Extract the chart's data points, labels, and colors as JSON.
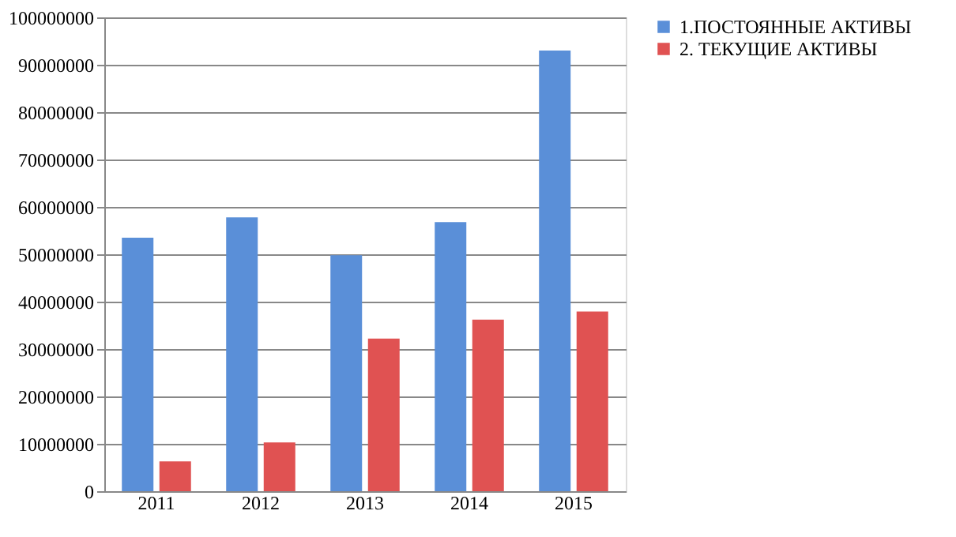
{
  "chart_data": {
    "type": "bar",
    "categories": [
      "2011",
      "2012",
      "2013",
      "2014",
      "2015"
    ],
    "series": [
      {
        "name": "1.ПОСТОЯННЫЕ АКТИВЫ",
        "color": "#5a8fd8",
        "values": [
          53500000,
          57800000,
          49800000,
          56800000,
          93000000
        ]
      },
      {
        "name": "2. ТЕКУЩИЕ АКТИВЫ",
        "color": "#e05252",
        "values": [
          6300000,
          10300000,
          32200000,
          36200000,
          37900000
        ]
      }
    ],
    "ylim": [
      0,
      100000000
    ],
    "yticks": [
      0,
      10000000,
      20000000,
      30000000,
      40000000,
      50000000,
      60000000,
      70000000,
      80000000,
      90000000,
      100000000
    ],
    "grid": "y",
    "legend": "right"
  }
}
